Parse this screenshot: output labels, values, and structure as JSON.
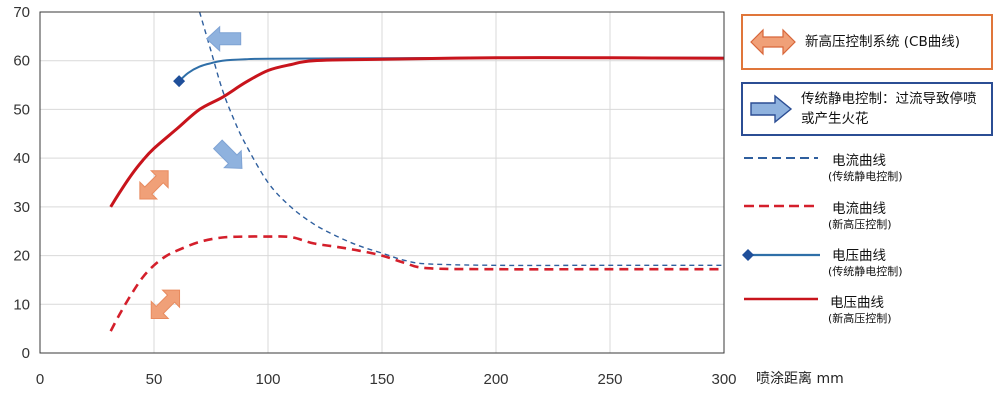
{
  "colors": {
    "current_cb": "#d41f2b",
    "current_traditional": "#2f5f9e",
    "voltage_cb": "#c8141c",
    "voltage_traditional": "#2f6fa8",
    "orange_arrow": "#f0a078",
    "blue_arrow": "#8fb2de",
    "legend_orange_border": "#e0763a",
    "legend_blue_border": "#2b4d94"
  },
  "legend_boxes": [
    {
      "label": "新高压控制系统 (CB曲线)",
      "icon": "orange-double-arrow-icon"
    },
    {
      "label": "传统静电控制：过流导致停喷或产生火花",
      "icon": "blue-right-arrow-icon"
    }
  ],
  "line_legend": [
    {
      "label": "电流曲线",
      "sub": "(传统静电控制)",
      "style": "dashed",
      "color": "#2f5f9e"
    },
    {
      "label": "电流曲线",
      "sub": "(新高压控制)",
      "style": "dashed",
      "color": "#d41f2b"
    },
    {
      "label": "电压曲线",
      "sub": "(传统静电控制)",
      "style": "solid-diamond",
      "color": "#2f6fa8"
    },
    {
      "label": "电压曲线",
      "sub": "(新高压控制)",
      "style": "solid",
      "color": "#c8141c"
    }
  ],
  "chart_data": {
    "type": "line",
    "title": "",
    "xlabel": "喷涂距离 mm",
    "ylabel": "",
    "xlim": [
      0,
      300
    ],
    "ylim": [
      0,
      70
    ],
    "xticks": [
      0,
      50,
      100,
      150,
      200,
      250,
      300
    ],
    "yticks": [
      0,
      10,
      20,
      30,
      40,
      50,
      60,
      70
    ],
    "grid": true,
    "series": [
      {
        "name": "电流曲线 (传统静电控制)",
        "style": "dashed-thin",
        "color": "#2f5f9e",
        "points": [
          [
            70,
            70
          ],
          [
            75,
            62
          ],
          [
            80,
            54
          ],
          [
            85,
            48
          ],
          [
            90,
            43
          ],
          [
            100,
            35
          ],
          [
            110,
            30
          ],
          [
            120,
            26.5
          ],
          [
            130,
            24
          ],
          [
            140,
            22
          ],
          [
            150,
            20.5
          ],
          [
            160,
            19
          ],
          [
            170,
            18.3
          ],
          [
            200,
            18
          ],
          [
            250,
            18
          ],
          [
            300,
            18
          ]
        ]
      },
      {
        "name": "电流曲线 (新高压控制)",
        "style": "dashed-thick",
        "color": "#d41f2b",
        "points": [
          [
            31,
            4.5
          ],
          [
            35,
            8
          ],
          [
            40,
            12
          ],
          [
            45,
            15.5
          ],
          [
            50,
            18
          ],
          [
            55,
            19.8
          ],
          [
            60,
            21
          ],
          [
            70,
            22.8
          ],
          [
            80,
            23.7
          ],
          [
            90,
            23.9
          ],
          [
            100,
            23.9
          ],
          [
            110,
            23.8
          ],
          [
            120,
            22.5
          ],
          [
            130,
            21.8
          ],
          [
            140,
            21
          ],
          [
            150,
            20
          ],
          [
            160,
            18.5
          ],
          [
            170,
            17.4
          ],
          [
            200,
            17.2
          ],
          [
            250,
            17.2
          ],
          [
            300,
            17.2
          ]
        ]
      },
      {
        "name": "电压曲线 (传统静电控制)",
        "style": "solid-thin",
        "color": "#2f6fa8",
        "marker_start": "diamond",
        "points": [
          [
            61,
            55.8
          ],
          [
            65,
            57.5
          ],
          [
            70,
            58.8
          ],
          [
            75,
            59.5
          ],
          [
            80,
            60
          ],
          [
            90,
            60.3
          ],
          [
            100,
            60.4
          ],
          [
            150,
            60.5
          ],
          [
            200,
            60.6
          ],
          [
            250,
            60.6
          ],
          [
            300,
            60.6
          ]
        ]
      },
      {
        "name": "电压曲线 (新高压控制)",
        "style": "solid-thick",
        "color": "#c8141c",
        "points": [
          [
            31,
            30
          ],
          [
            35,
            33
          ],
          [
            40,
            36.5
          ],
          [
            45,
            39.5
          ],
          [
            50,
            42
          ],
          [
            60,
            46
          ],
          [
            70,
            50
          ],
          [
            80,
            52.5
          ],
          [
            90,
            55.5
          ],
          [
            100,
            58
          ],
          [
            110,
            59.2
          ],
          [
            120,
            60
          ],
          [
            150,
            60.3
          ],
          [
            200,
            60.6
          ],
          [
            250,
            60.6
          ],
          [
            300,
            60.5
          ]
        ]
      }
    ],
    "annotations": [
      {
        "icon": "blue-left-arrow-icon",
        "x": 81,
        "y": 64.5,
        "rotation": 0
      },
      {
        "icon": "blue-arrow-up-left-icon",
        "x": 83,
        "y": 40.5,
        "rotation": -135
      },
      {
        "icon": "orange-double-arrow-icon",
        "x": 50,
        "y": 34.5,
        "rotation": -45
      },
      {
        "icon": "orange-double-arrow-icon",
        "x": 55,
        "y": 10,
        "rotation": -45
      }
    ]
  }
}
